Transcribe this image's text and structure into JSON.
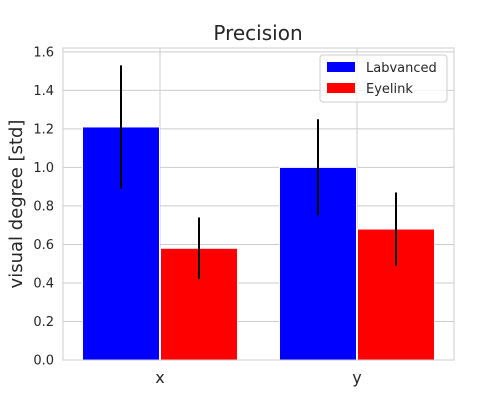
{
  "chart_data": {
    "type": "bar",
    "title": "Precision",
    "xlabel": "",
    "ylabel": "visual degree [std]",
    "categories": [
      "x",
      "y"
    ],
    "series": [
      {
        "name": "Labvanced",
        "color": "#0000ff",
        "values": [
          1.21,
          1.0
        ],
        "errors": [
          0.32,
          0.25
        ]
      },
      {
        "name": "Eyelink",
        "color": "#ff0000",
        "values": [
          0.58,
          0.68
        ],
        "errors": [
          0.16,
          0.19
        ]
      }
    ],
    "ylim": [
      0.0,
      1.62
    ],
    "yticks": [
      "0.0",
      "0.2",
      "0.4",
      "0.6",
      "0.8",
      "1.0",
      "1.2",
      "1.4",
      "1.6"
    ],
    "grid": true,
    "legend_position": "top-right"
  }
}
